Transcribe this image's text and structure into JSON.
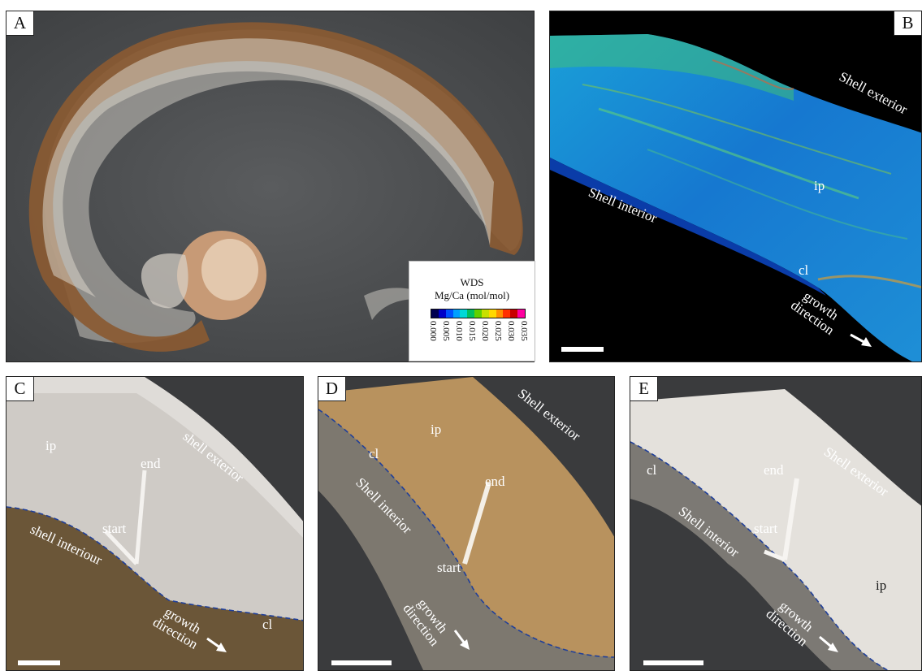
{
  "panels": {
    "a": {
      "letter": "A"
    },
    "b": {
      "letter": "B",
      "shell_exterior": "Shell exterior",
      "shell_interior": "Shell interior",
      "ip": "ip",
      "cl": "cl",
      "growth_direction": "growth\ndirection"
    },
    "c": {
      "letter": "C",
      "ip": "ip",
      "end": "end",
      "start": "start",
      "shell_exterior": "shell exterior",
      "shell_interior": "shell interiour",
      "growth_direction": "growth\ndirection",
      "cl": "cl"
    },
    "d": {
      "letter": "D",
      "ip": "ip",
      "cl": "cl",
      "shell_exterior": "Shell exterior",
      "shell_interior": "Shell interior",
      "end": "end",
      "start": "start",
      "growth_direction": "growth\ndirection"
    },
    "e": {
      "letter": "E",
      "cl": "cl",
      "end": "end",
      "shell_exterior": "Shell exterior",
      "shell_interior": "Shell interior",
      "start": "start",
      "ip": "ip",
      "growth_direction": "growth\ndirection"
    }
  },
  "colorbar": {
    "title_line1": "WDS",
    "title_line2": "Mg/Ca (mol/mol)",
    "ticks": [
      "0.000",
      "0.005",
      "0.010",
      "0.015",
      "0.020",
      "0.025",
      "0.030",
      "0.035"
    ],
    "colors": [
      "#000050",
      "#0000c8",
      "#0050ff",
      "#00a0ff",
      "#00d8d8",
      "#00c060",
      "#60d000",
      "#c8e000",
      "#ffd800",
      "#ff9000",
      "#ff3000",
      "#c80000",
      "#ff00a0"
    ]
  },
  "colors": {
    "map_background": "#000000",
    "photo_background": "#3a3b3d",
    "shell_brown": "#8a5a32",
    "dashed_line": "#1f3f9a",
    "text_light": "#ffffff"
  }
}
